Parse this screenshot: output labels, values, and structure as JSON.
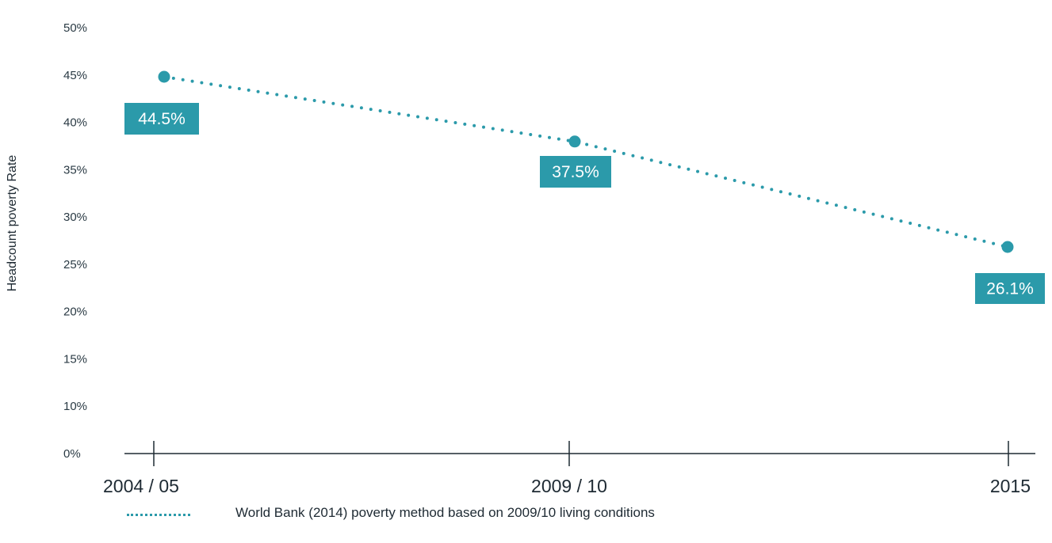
{
  "chart_data": {
    "type": "line",
    "title": "",
    "xlabel": "",
    "ylabel": "Headcount poverty Rate",
    "categories": [
      "2004 / 05",
      "2009 / 10",
      "2015"
    ],
    "series": [
      {
        "name": "World Bank (2014) poverty method based on 2009/10 living conditions",
        "values": [
          44.5,
          37.5,
          26.1
        ],
        "labels": [
          "44.5%",
          "37.5%",
          "26.1%"
        ],
        "style": "dotted"
      }
    ],
    "ylim": [
      0,
      50
    ],
    "yticks": [
      "0%",
      "10%",
      "15%",
      "20%",
      "25%",
      "30%",
      "35%",
      "40%",
      "45%",
      "50%"
    ],
    "grid": false,
    "legend_position": "bottom-left",
    "colors": {
      "series": "#2b9aaa",
      "label_bg": "#2b9aaa",
      "axis": "#1e2a33"
    }
  }
}
